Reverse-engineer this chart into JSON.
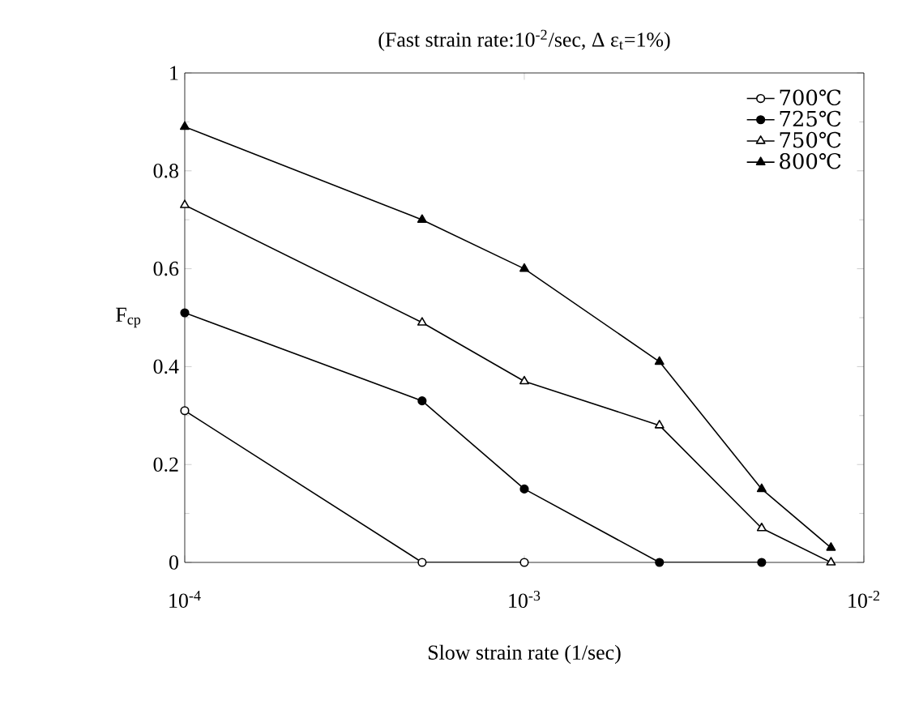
{
  "chart_data": {
    "type": "line",
    "title": "(Fast strain rate:10$^{-2}$/sec,  Δ ε$_{t}$=1%)",
    "xlabel": "Slow strain rate   (1/sec)",
    "ylabel": "F$_{cp}$",
    "log": "x",
    "xlim": [
      0.0001,
      0.01
    ],
    "ylim": [
      0,
      1
    ],
    "xticks": [
      {
        "value": 0.0001,
        "label": "10$^{-4}$"
      },
      {
        "value": 0.001,
        "label": "10$^{-3}$"
      },
      {
        "value": 0.01,
        "label": "10$^{-2}$"
      }
    ],
    "yticks": [
      0,
      0.2,
      0.4,
      0.6,
      0.8,
      1
    ],
    "legend": "top right",
    "grid": false,
    "line_style": "solid",
    "series": [
      {
        "name": "700℃",
        "color": "#000000",
        "marker": "circle",
        "x": [
          0.0001,
          0.0005,
          0.001
        ],
        "values": [
          0.31,
          0,
          0
        ]
      },
      {
        "name": "725℃",
        "color": "#000000",
        "marker": "circle",
        "x": [
          0.0001,
          0.0005,
          0.001,
          0.0025,
          0.005
        ],
        "values": [
          0.51,
          0.33,
          0.15,
          0,
          0
        ]
      },
      {
        "name": "750℃",
        "color": "#000000",
        "marker": "triangle",
        "x": [
          0.0001,
          0.0005,
          0.001,
          0.0025,
          0.005,
          0.008
        ],
        "values": [
          0.73,
          0.49,
          0.37,
          0.28,
          0.07,
          0
        ]
      },
      {
        "name": "800℃",
        "color": "#000000",
        "marker": "triangle",
        "x": [
          0.0001,
          0.0005,
          0.001,
          0.0025,
          0.005,
          0.008
        ],
        "values": [
          0.89,
          0.7,
          0.6,
          0.41,
          0.15,
          0.03
        ]
      }
    ]
  }
}
